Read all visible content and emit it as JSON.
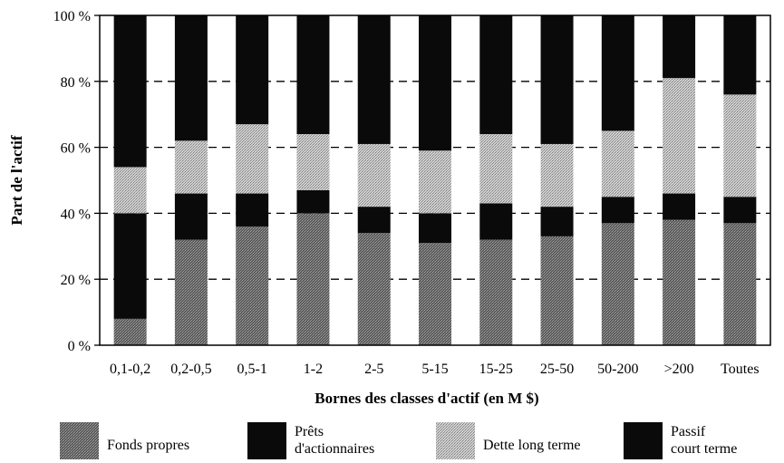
{
  "chart_data": {
    "type": "bar",
    "stacked": true,
    "percent": true,
    "categories": [
      "0,1-0,2",
      "0,2-0,5",
      "0,5-1",
      "1-2",
      "2-5",
      "5-15",
      "15-25",
      "25-50",
      "50-200",
      ">200",
      "Toutes"
    ],
    "series": [
      {
        "name": "Fonds propres",
        "color": "#6f6f6f",
        "pattern": "dark-dots",
        "values": [
          8,
          32,
          36,
          40,
          34,
          31,
          32,
          33,
          37,
          38,
          37
        ]
      },
      {
        "name": "Prêts d'actionnaires",
        "color": "#0a0a0a",
        "pattern": "solid",
        "values": [
          32,
          14,
          10,
          7,
          8,
          9,
          11,
          9,
          8,
          8,
          8
        ]
      },
      {
        "name": "Dette long terme",
        "color": "#b4b4b4",
        "pattern": "light-dots",
        "values": [
          14,
          16,
          21,
          17,
          19,
          19,
          21,
          19,
          20,
          35,
          31
        ]
      },
      {
        "name": "Passif court terme",
        "color": "#0a0a0a",
        "pattern": "solid",
        "values": [
          46,
          38,
          33,
          36,
          39,
          41,
          36,
          39,
          35,
          19,
          24
        ]
      }
    ],
    "legend_labels": [
      [
        "Fonds propres"
      ],
      [
        "Prêts",
        "d'actionnaires"
      ],
      [
        "Dette long terme"
      ],
      [
        "Passif",
        "court terme"
      ]
    ],
    "yticks": [
      "0 %",
      "20 %",
      "40 %",
      "60 %",
      "80 %",
      "100 %"
    ],
    "ytick_values": [
      0,
      20,
      40,
      60,
      80,
      100
    ],
    "ylim": [
      0,
      100
    ],
    "title": "",
    "xlabel": "Bornes des classes d'actif (en M $)",
    "ylabel": "Part de l'actif",
    "grid": "dashed horizontal",
    "legend_position": "bottom"
  }
}
